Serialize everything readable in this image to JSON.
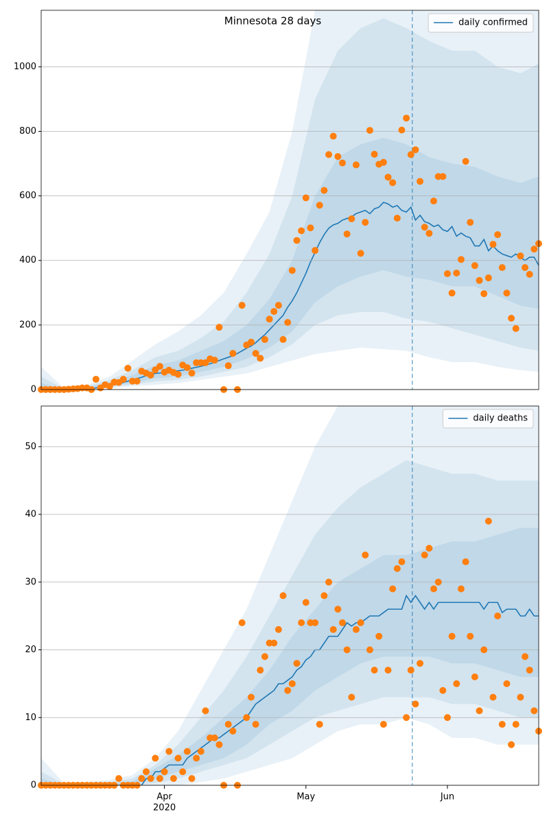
{
  "chart_data": [
    {
      "type": "line",
      "title": "Minnesota 28 days",
      "series": [
        {
          "name": "daily confirmed",
          "color": "#1f77b4",
          "values": [
            0,
            0,
            0,
            0,
            0,
            0,
            0,
            1,
            1,
            2,
            3,
            4,
            5,
            7,
            9,
            12,
            15,
            18,
            22,
            26,
            30,
            34,
            38,
            43,
            48,
            50,
            51,
            53,
            55,
            57,
            58,
            60,
            63,
            66,
            69,
            72,
            76,
            80,
            85,
            90,
            95,
            100,
            105,
            112,
            120,
            128,
            135,
            145,
            158,
            170,
            185,
            200,
            215,
            230,
            255,
            275,
            300,
            330,
            360,
            395,
            425,
            455,
            480,
            500,
            510,
            515,
            525,
            530,
            535,
            545,
            550,
            555,
            545,
            560,
            565,
            580,
            575,
            565,
            570,
            555,
            550,
            565,
            525,
            540,
            520,
            515,
            505,
            510,
            495,
            490,
            505,
            475,
            485,
            475,
            470,
            445,
            445,
            465,
            430,
            445,
            430,
            420,
            415,
            410,
            420,
            410,
            400,
            410,
            410,
            385
          ]
        }
      ],
      "points": {
        "color": "#ff7f0e",
        "values": [
          0,
          0,
          0,
          0,
          0,
          0,
          1,
          2,
          3,
          5,
          5,
          0,
          32,
          5,
          15,
          10,
          23,
          22,
          32,
          66,
          26,
          26,
          57,
          51,
          45,
          61,
          72,
          54,
          60,
          53,
          47,
          76,
          68,
          51,
          83,
          83,
          83,
          95,
          91,
          193,
          0,
          74,
          112,
          0,
          261,
          138,
          147,
          112,
          97,
          155,
          218,
          242,
          261,
          155,
          208,
          369,
          462,
          492,
          594,
          501,
          431,
          571,
          617,
          728,
          785,
          722,
          702,
          482,
          529,
          696,
          422,
          518,
          803,
          729,
          698,
          704,
          658,
          641,
          531,
          804,
          841,
          728,
          743,
          645,
          503,
          484,
          584,
          660,
          660,
          359,
          299,
          361,
          403,
          707,
          518,
          384,
          338,
          297,
          346,
          450,
          480,
          378,
          299,
          221,
          189,
          414,
          378,
          357,
          435,
          452
        ]
      },
      "bands": {
        "color": "#1f77b4",
        "x": [
          0,
          5,
          10,
          15,
          20,
          25,
          30,
          35,
          40,
          45,
          50,
          55,
          60,
          65,
          70,
          75,
          80,
          85,
          90,
          95,
          100,
          105,
          109
        ],
        "levels": [
          {
            "lower": [
              0,
              0,
              0,
              5,
              10,
              15,
              20,
              30,
              40,
              50,
              70,
              90,
              110,
              120,
              130,
              125,
              120,
              100,
              85,
              85,
              70,
              60,
              55
            ],
            "upper": [
              70,
              5,
              15,
              40,
              90,
              140,
              180,
              230,
              300,
              420,
              550,
              800,
              1175,
              1175,
              1175,
              1175,
              1175,
              1175,
              1175,
              1175,
              1175,
              1175,
              1175
            ]
          },
          {
            "lower": [
              0,
              0,
              1,
              8,
              15,
              25,
              30,
              40,
              55,
              70,
              100,
              140,
              200,
              230,
              240,
              240,
              220,
              210,
              190,
              170,
              150,
              130,
              120
            ],
            "upper": [
              40,
              3,
              10,
              30,
              60,
              100,
              120,
              160,
              210,
              300,
              420,
              600,
              900,
              1050,
              1120,
              1150,
              1120,
              1080,
              1050,
              1050,
              1000,
              980,
              1010
            ]
          },
          {
            "lower": [
              0,
              0,
              2,
              12,
              20,
              35,
              40,
              55,
              70,
              95,
              130,
              180,
              270,
              320,
              350,
              370,
              350,
              340,
              320,
              320,
              290,
              260,
              250
            ],
            "upper": [
              20,
              2,
              7,
              22,
              45,
              75,
              90,
              120,
              150,
              200,
              280,
              400,
              600,
              720,
              760,
              780,
              760,
              720,
              700,
              690,
              660,
              640,
              660
            ]
          }
        ]
      },
      "vline": 81.3,
      "xlim": [
        0,
        109
      ],
      "ylim": [
        0,
        1175
      ],
      "yticks": [
        0,
        200,
        400,
        600,
        800,
        1000
      ],
      "grid": true,
      "legend": "upper right"
    },
    {
      "type": "line",
      "series": [
        {
          "name": "daily deaths",
          "color": "#1f77b4",
          "values": [
            0,
            0,
            0,
            0,
            0,
            0,
            0,
            0,
            0,
            0,
            0,
            0,
            0,
            0,
            0,
            0,
            0,
            0,
            0,
            0,
            0,
            0,
            0,
            1,
            1,
            2,
            2,
            2.5,
            3,
            3,
            3,
            3,
            4,
            4.5,
            5,
            5.5,
            6,
            6.5,
            7,
            7,
            7.5,
            8,
            8.5,
            9,
            9.5,
            10,
            11,
            12,
            12.5,
            13,
            13.5,
            14,
            15,
            15,
            15.5,
            16,
            17,
            17.5,
            18.5,
            19,
            20,
            20,
            21,
            22,
            22,
            22,
            23,
            24,
            23.5,
            24,
            24,
            24.5,
            25,
            25,
            25,
            25.5,
            26,
            26,
            26,
            26,
            28,
            27,
            28,
            27,
            26,
            27,
            26,
            27,
            27,
            27,
            27,
            27,
            27,
            27,
            27,
            27,
            27,
            26,
            27,
            27,
            27,
            25.5,
            26,
            26,
            26,
            25,
            25,
            26,
            25,
            25
          ]
        }
      ],
      "points": {
        "color": "#ff7f0e",
        "values": [
          0,
          0,
          0,
          0,
          0,
          0,
          0,
          0,
          0,
          0,
          0,
          0,
          0,
          0,
          0,
          0,
          0,
          1,
          0,
          0,
          0,
          0,
          1,
          2,
          1,
          4,
          1,
          2,
          5,
          1,
          4,
          2,
          5,
          1,
          4,
          5,
          11,
          7,
          7,
          6,
          0,
          9,
          8,
          0,
          24,
          10,
          13,
          9,
          17,
          19,
          21,
          21,
          23,
          28,
          14,
          15,
          18,
          24,
          27,
          24,
          24,
          9,
          28,
          30,
          23,
          26,
          24,
          20,
          13,
          23,
          24,
          34,
          20,
          17,
          22,
          9,
          17,
          29,
          32,
          33,
          10,
          17,
          12,
          18,
          34,
          35,
          29,
          30,
          14,
          10,
          22,
          15,
          29,
          33,
          22,
          16,
          11,
          20,
          39,
          13,
          25,
          9,
          15,
          6,
          9,
          13,
          19,
          17,
          11,
          8
        ]
      },
      "bands": {
        "color": "#1f77b4",
        "x": [
          0,
          5,
          10,
          15,
          20,
          25,
          30,
          35,
          40,
          45,
          50,
          55,
          60,
          65,
          70,
          75,
          80,
          85,
          90,
          95,
          100,
          105,
          109
        ],
        "levels": [
          {
            "lower": [
              0,
              0,
              0,
              0,
              0,
              0,
              0,
              0.5,
              1,
              2,
              3,
              4,
              6,
              8,
              9,
              9,
              10,
              9,
              7,
              7,
              6,
              6,
              6
            ],
            "upper": [
              4,
              0.3,
              0.5,
              0.8,
              1.5,
              4,
              8,
              14,
              20,
              26,
              34,
              42,
              50,
              56,
              56,
              56,
              56,
              56,
              56,
              56,
              56,
              56,
              56
            ]
          },
          {
            "lower": [
              0,
              0,
              0,
              0,
              0,
              0.3,
              1,
              2,
              3,
              4,
              6,
              8,
              10,
              11,
              12,
              13,
              13,
              13,
              12,
              12,
              11,
              10,
              10
            ],
            "upper": [
              2,
              0.2,
              0.3,
              0.5,
              1,
              3,
              6,
              10,
              14,
              19,
              25,
              31,
              37,
              41,
              44,
              46,
              48,
              47,
              46,
              46,
              45,
              45,
              45
            ]
          },
          {
            "lower": [
              0,
              0,
              0,
              0,
              0,
              1,
              2,
              3,
              4,
              6,
              9,
              11,
              14,
              16,
              18,
              19,
              19,
              19,
              18,
              18,
              17,
              16,
              16
            ],
            "upper": [
              1,
              0.1,
              0.2,
              0.3,
              0.6,
              2.5,
              4.5,
              7,
              10,
              13,
              17,
              22,
              26,
              30,
              32,
              34,
              34,
              35,
              36,
              36,
              37,
              38,
              38
            ]
          }
        ]
      },
      "vline": 81.3,
      "xlim": [
        0,
        109
      ],
      "ylim": [
        0,
        56
      ],
      "yticks": [
        0,
        10,
        20,
        30,
        40,
        50
      ],
      "xticks": [
        {
          "value": 27,
          "label": "Apr"
        },
        {
          "value": 58,
          "label": "May"
        },
        {
          "value": 89,
          "label": "Jun"
        }
      ],
      "x_year_label": "2020",
      "grid": true,
      "legend": "upper right"
    }
  ]
}
